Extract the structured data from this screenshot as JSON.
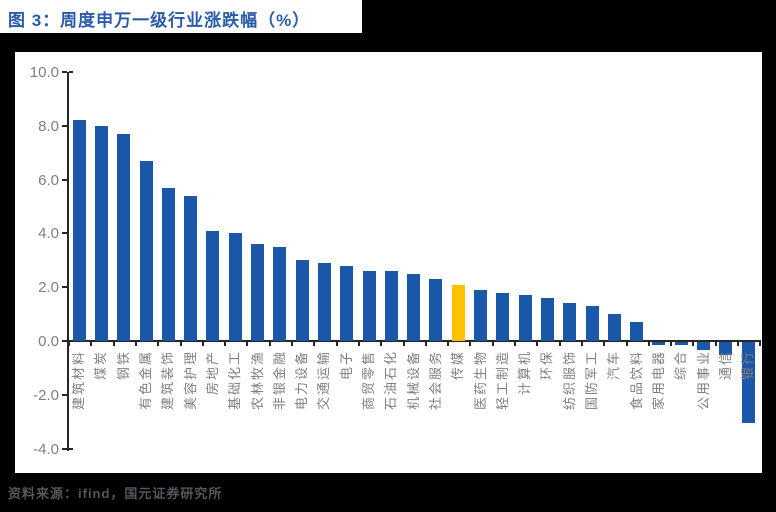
{
  "title": "图 3：周度申万一级行业涨跌幅（%）",
  "source": "资料来源：ifind，国元证券研究所",
  "colors": {
    "background": "#000000",
    "panel": "#FFFFFF",
    "bar": "#1A57A8",
    "highlight": "#FFC000",
    "title_text": "#2A5DA9",
    "axis_text": "#7F7F7F",
    "axis_line": "#262626",
    "source_text": "#55555C"
  },
  "chart_data": {
    "type": "bar",
    "title": "周度申万一级行业涨跌幅（%）",
    "categories": [
      "建筑材料",
      "煤炭",
      "钢铁",
      "有色金属",
      "建筑装饰",
      "美容护理",
      "房地产",
      "基础化工",
      "农林牧渔",
      "非银金融",
      "电力设备",
      "交通运输",
      "电子",
      "商贸零售",
      "石油石化",
      "机械设备",
      "社会服务",
      "传媒",
      "医药生物",
      "轻工制造",
      "计算机",
      "环保",
      "纺织服饰",
      "国防军工",
      "汽车",
      "食品饮料",
      "家用电器",
      "综合",
      "公用事业",
      "通信",
      "银行"
    ],
    "values": [
      8.2,
      8.0,
      7.7,
      6.7,
      5.7,
      5.4,
      4.1,
      4.0,
      3.6,
      3.5,
      3.0,
      2.9,
      2.8,
      2.6,
      2.6,
      2.5,
      2.3,
      2.1,
      1.9,
      1.8,
      1.7,
      1.6,
      1.4,
      1.3,
      1.0,
      0.7,
      -0.1,
      -0.1,
      -0.3,
      -0.5,
      -3.0
    ],
    "highlight_category": "传媒",
    "xlabel": "",
    "ylabel": "",
    "ylim": [
      -4.0,
      10.0
    ],
    "yticks": [
      "10.0",
      "8.0",
      "6.0",
      "4.0",
      "2.0",
      "0.0",
      "-2.0",
      "-4.0"
    ],
    "ytick_values": [
      10.0,
      8.0,
      6.0,
      4.0,
      2.0,
      0.0,
      -2.0,
      -4.0
    ],
    "grid": false,
    "legend": false
  }
}
